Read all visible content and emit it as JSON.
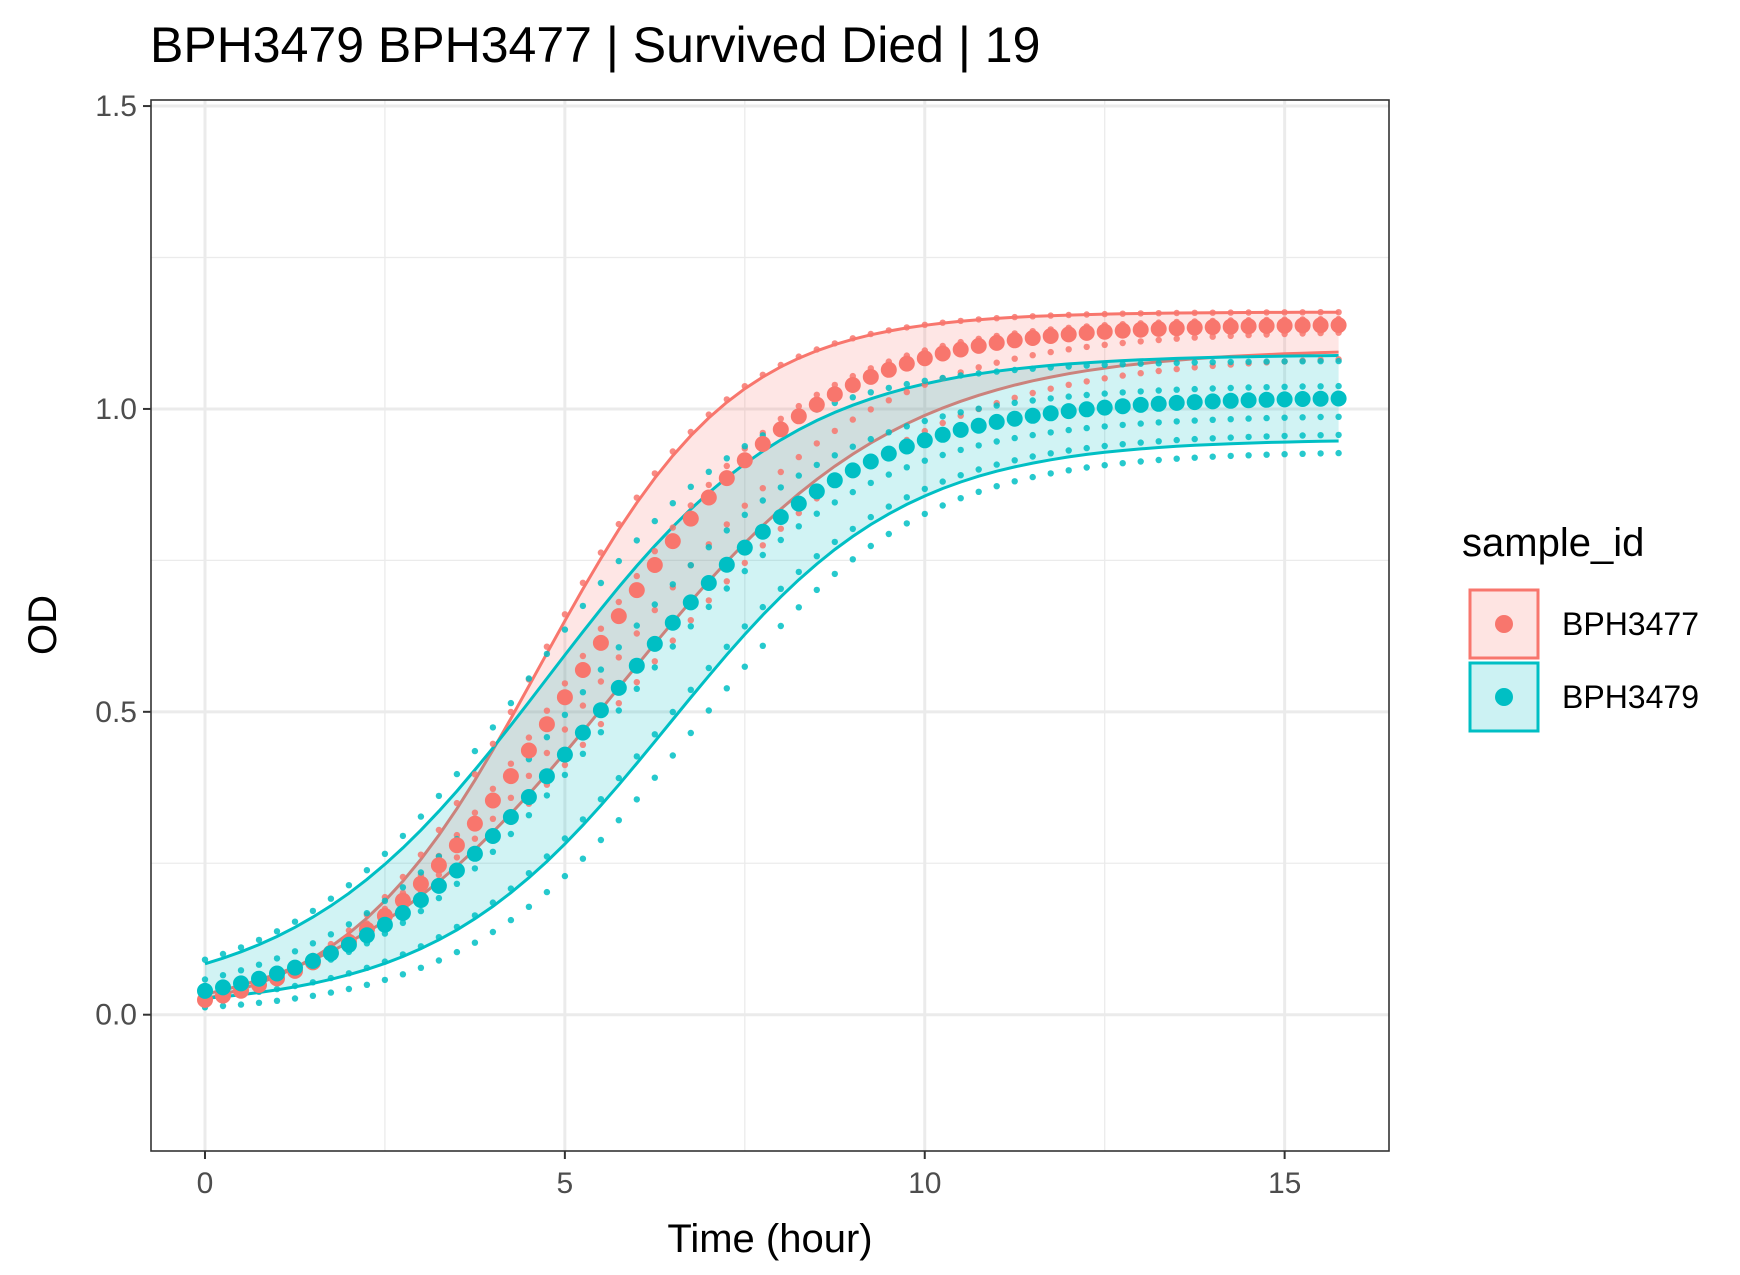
{
  "chart_data": {
    "type": "line",
    "title": "BPH3479 BPH3477 | Survived Died | 19",
    "xlabel": "Time (hour)",
    "ylabel": "OD",
    "xlim": [
      -0.75,
      16.45
    ],
    "ylim": [
      -0.225,
      1.51
    ],
    "x_ticks": [
      0,
      5,
      10,
      15
    ],
    "x_tick_labels": [
      "0",
      "5",
      "10",
      "15"
    ],
    "y_ticks": [
      0.0,
      0.5,
      1.0,
      1.5
    ],
    "y_tick_labels": [
      "0.0",
      "0.5",
      "1.0",
      "1.5"
    ],
    "x_minor": [
      2.5,
      7.5,
      12.5
    ],
    "y_minor": [
      0.25,
      0.75,
      1.25
    ],
    "grid": true,
    "legend": {
      "title": "sample_id",
      "position": "right"
    },
    "time_step_hours": 0.25,
    "x_max": 15.75,
    "series": [
      {
        "name": "BPH3477",
        "color": "#F8766D",
        "mean_curve": {
          "y0": -0.02,
          "K": 1.14,
          "r": 0.62,
          "t_mid": 5.2
        },
        "upper_band": {
          "y0": -0.01,
          "K": 1.16,
          "r": 0.74,
          "t_mid": 4.65
        },
        "lower_band": {
          "y0": -0.02,
          "K": 1.1,
          "r": 0.52,
          "t_mid": 5.75
        },
        "replicates": [
          {
            "y0": -0.01,
            "K": 1.16,
            "r": 0.74,
            "t_mid": 4.6
          },
          {
            "y0": -0.02,
            "K": 1.15,
            "r": 0.62,
            "t_mid": 5.1
          },
          {
            "y0": -0.03,
            "K": 1.13,
            "r": 0.55,
            "t_mid": 5.5
          },
          {
            "y0": -0.02,
            "K": 1.09,
            "r": 0.5,
            "t_mid": 5.9
          }
        ]
      },
      {
        "name": "BPH3479",
        "color": "#00BFC4",
        "mean_curve": {
          "y0": 0.0,
          "K": 1.02,
          "r": 0.58,
          "t_mid": 5.55
        },
        "upper_band": {
          "y0": 0.02,
          "K": 1.09,
          "r": 0.58,
          "t_mid": 4.75
        },
        "lower_band": {
          "y0": 0.01,
          "K": 0.95,
          "r": 0.62,
          "t_mid": 6.45
        },
        "replicates": [
          {
            "y0": 0.03,
            "K": 1.08,
            "r": 0.62,
            "t_mid": 4.5
          },
          {
            "y0": 0.01,
            "K": 1.04,
            "r": 0.58,
            "t_mid": 5.2
          },
          {
            "y0": 0.0,
            "K": 0.99,
            "r": 0.58,
            "t_mid": 5.7
          },
          {
            "y0": 0.01,
            "K": 0.96,
            "r": 0.62,
            "t_mid": 6.4
          },
          {
            "y0": 0.0,
            "K": 0.93,
            "r": 0.64,
            "t_mid": 6.75
          }
        ]
      }
    ]
  }
}
